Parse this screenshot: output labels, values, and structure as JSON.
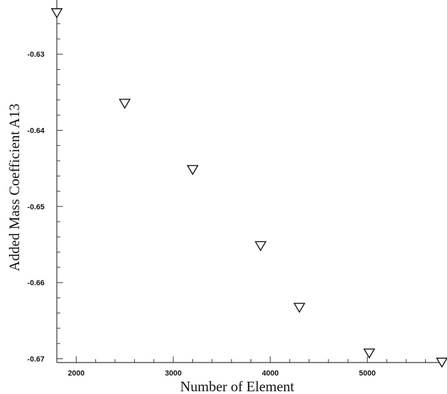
{
  "chart_data": {
    "type": "scatter",
    "title": "",
    "xlabel": "Number of Element",
    "ylabel": "Added Mass Coefficient A13",
    "xlim": [
      1800,
      5800
    ],
    "ylim": [
      -0.6705,
      -0.6245
    ],
    "x_ticks": [
      2000,
      3000,
      4000,
      5000
    ],
    "y_ticks": [
      -0.63,
      -0.64,
      -0.65,
      -0.66,
      -0.67
    ],
    "x_tick_labels": [
      "2000",
      "3000",
      "4000",
      "5000"
    ],
    "y_tick_labels": [
      "-0.63",
      "-0.64",
      "-0.65",
      "-0.66",
      "-0.67"
    ],
    "grid": false,
    "marker": "down-triangle",
    "series": [
      {
        "points": [
          {
            "x": 1800,
            "y": -0.6246
          },
          {
            "x": 2500,
            "y": -0.6365
          },
          {
            "x": 3200,
            "y": -0.6452
          },
          {
            "x": 3900,
            "y": -0.6552
          },
          {
            "x": 4300,
            "y": -0.6633
          },
          {
            "x": 5020,
            "y": -0.6693
          },
          {
            "x": 5800,
            "y": -0.6705
          }
        ]
      }
    ]
  }
}
